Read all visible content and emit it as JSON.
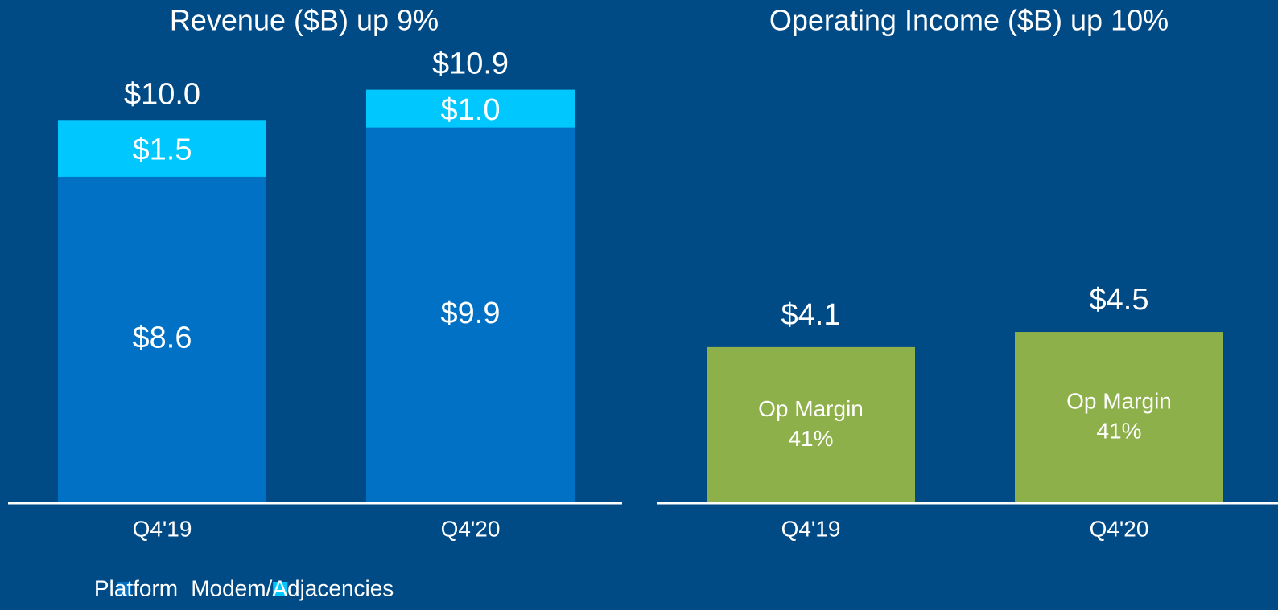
{
  "chart_data": [
    {
      "type": "bar",
      "stacked": true,
      "title": "Revenue ($B) up 9%",
      "categories": [
        "Q4'19",
        "Q4'20"
      ],
      "series": [
        {
          "name": "Platform",
          "color": "#0071c5",
          "values": [
            8.6,
            9.9
          ],
          "value_labels": [
            "$8.6",
            "$9.9"
          ]
        },
        {
          "name": "Modem/Adjacencies",
          "color": "#00c7fd",
          "values": [
            1.5,
            1.0
          ],
          "value_labels": [
            "$1.5",
            "$1.0"
          ]
        }
      ],
      "totals": [
        10.0,
        10.9
      ],
      "total_labels": [
        "$10.0",
        "$10.9"
      ],
      "legend": "bottom-left"
    },
    {
      "type": "bar",
      "title": "Operating Income ($B) up 10%",
      "categories": [
        "Q4'19",
        "Q4'20"
      ],
      "values": [
        4.1,
        4.5
      ],
      "value_labels": [
        "$4.1",
        "$4.5"
      ],
      "color": "#8db04a",
      "annotation": "Op Margin",
      "margins": [
        41,
        41
      ],
      "margin_labels": [
        "41%",
        "41%"
      ]
    }
  ]
}
